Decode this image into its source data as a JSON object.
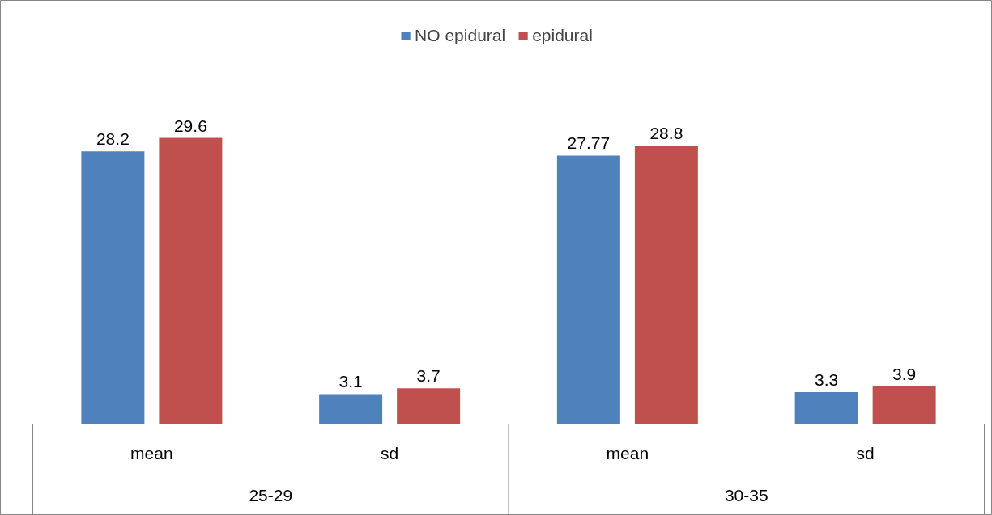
{
  "chart_data": {
    "type": "bar",
    "categories": [
      "mean",
      "sd",
      "mean",
      "sd"
    ],
    "series": [
      {
        "name": "NO epidural",
        "color": "#4f81bd",
        "values": [
          28.2,
          3.1,
          27.77,
          3.3
        ]
      },
      {
        "name": "epidural",
        "color": "#c0504d",
        "values": [
          29.6,
          3.7,
          28.8,
          3.9
        ]
      }
    ],
    "data_labels": true,
    "legend": "top",
    "grid": false,
    "annotations": [
      "25-29",
      "30-35"
    ]
  }
}
